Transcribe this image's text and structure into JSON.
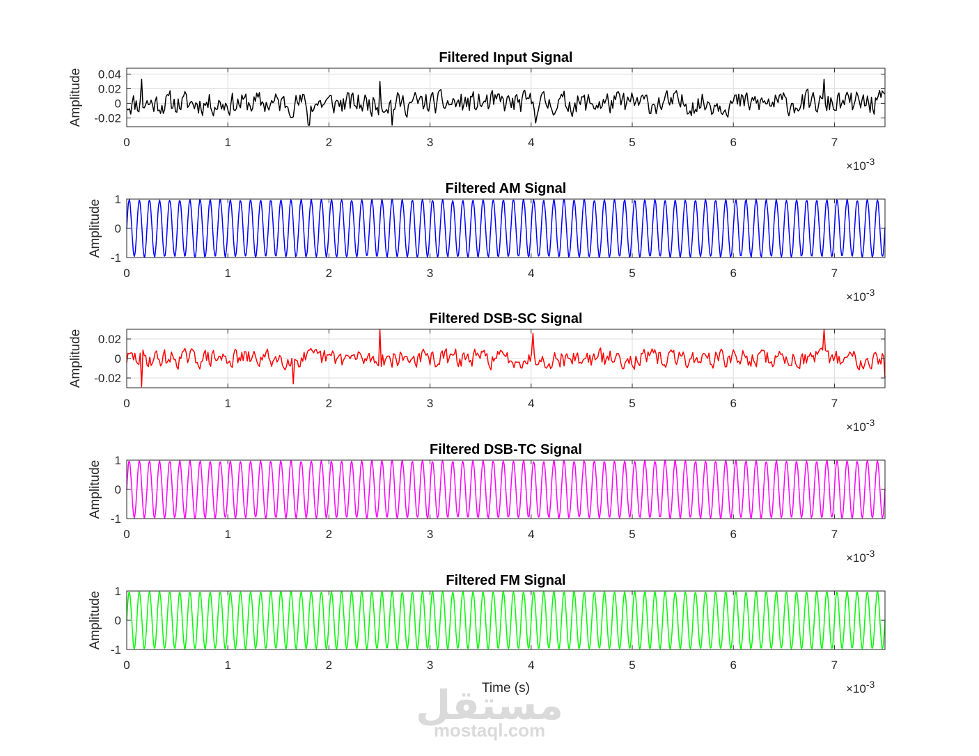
{
  "chart_data": [
    {
      "type": "line",
      "title": "Filtered Input Signal",
      "ylabel": "Amplitude",
      "xlabel": "",
      "x_multiplier_label": "×10",
      "x_multiplier_exponent": "-3",
      "xlim": [
        0,
        7.5
      ],
      "ylim": [
        -0.032,
        0.048
      ],
      "xticks": [
        0,
        1,
        2,
        3,
        4,
        5,
        6,
        7
      ],
      "yticks": [
        -0.02,
        0,
        0.02,
        0.04
      ],
      "ytick_labels": [
        "-0.02",
        "0",
        "0.02",
        "0.04"
      ],
      "grid": true,
      "series": [
        {
          "color": "#000000",
          "signal": "noise",
          "amplitude": 0.022,
          "seed": 11,
          "spikes": [
            [
              0.15,
              0.033
            ],
            [
              1.8,
              -0.03
            ],
            [
              2.5,
              0.03
            ],
            [
              2.62,
              -0.03
            ],
            [
              4.05,
              -0.027
            ],
            [
              6.9,
              0.033
            ]
          ]
        }
      ]
    },
    {
      "type": "line",
      "title": "Filtered AM Signal",
      "ylabel": "Amplitude",
      "xlabel": "",
      "x_multiplier_label": "×10",
      "x_multiplier_exponent": "-3",
      "xlim": [
        0,
        7.5
      ],
      "ylim": [
        -1,
        1
      ],
      "xticks": [
        0,
        1,
        2,
        3,
        4,
        5,
        6,
        7
      ],
      "yticks": [
        -1,
        0,
        1
      ],
      "ytick_labels": [
        "-1",
        "0",
        "1"
      ],
      "grid": true,
      "series": [
        {
          "color": "#0000ff",
          "signal": "sine",
          "frequency_cycles_per_unit": 10,
          "amplitude": 0.97,
          "jitter": 0.03,
          "seed": 3
        }
      ]
    },
    {
      "type": "line",
      "title": "Filtered DSB-SC Signal",
      "ylabel": "Amplitude",
      "xlabel": "",
      "x_multiplier_label": "×10",
      "x_multiplier_exponent": "-3",
      "xlim": [
        0,
        7.5
      ],
      "ylim": [
        -0.03,
        0.03
      ],
      "xticks": [
        0,
        1,
        2,
        3,
        4,
        5,
        6,
        7
      ],
      "yticks": [
        -0.02,
        0,
        0.02
      ],
      "ytick_labels": [
        "-0.02",
        "0",
        "0.02"
      ],
      "grid": true,
      "series": [
        {
          "color": "#ff0000",
          "signal": "noise",
          "amplitude": 0.013,
          "seed": 29,
          "spikes": [
            [
              0.15,
              -0.029
            ],
            [
              1.65,
              -0.026
            ],
            [
              2.5,
              0.03
            ],
            [
              4.02,
              0.026
            ],
            [
              6.9,
              0.03
            ],
            [
              7.5,
              -0.02
            ]
          ]
        }
      ]
    },
    {
      "type": "line",
      "title": "Filtered DSB-TC Signal",
      "ylabel": "Amplitude",
      "xlabel": "",
      "x_multiplier_label": "×10",
      "x_multiplier_exponent": "-3",
      "xlim": [
        0,
        7.5
      ],
      "ylim": [
        -1,
        1
      ],
      "xticks": [
        0,
        1,
        2,
        3,
        4,
        5,
        6,
        7
      ],
      "yticks": [
        -1,
        0,
        1
      ],
      "ytick_labels": [
        "-1",
        "0",
        "1"
      ],
      "grid": true,
      "series": [
        {
          "color": "#ff00ff",
          "signal": "sine",
          "frequency_cycles_per_unit": 10,
          "amplitude": 0.97,
          "jitter": 0.03,
          "seed": 5
        }
      ]
    },
    {
      "type": "line",
      "title": "Filtered FM Signal",
      "ylabel": "Amplitude",
      "xlabel": "Time (s)",
      "x_multiplier_label": "×10",
      "x_multiplier_exponent": "-3",
      "xlim": [
        0,
        7.5
      ],
      "ylim": [
        -1,
        1
      ],
      "xticks": [
        0,
        1,
        2,
        3,
        4,
        5,
        6,
        7
      ],
      "yticks": [
        -1,
        0,
        1
      ],
      "ytick_labels": [
        "-1",
        "0",
        "1"
      ],
      "grid": true,
      "series": [
        {
          "color": "#00ff00",
          "signal": "sine",
          "frequency_cycles_per_unit": 10,
          "amplitude": 0.97,
          "jitter": 0.02,
          "seed": 9
        }
      ]
    }
  ],
  "watermark": {
    "logo": "مستقل",
    "text": "mostaql.com"
  }
}
